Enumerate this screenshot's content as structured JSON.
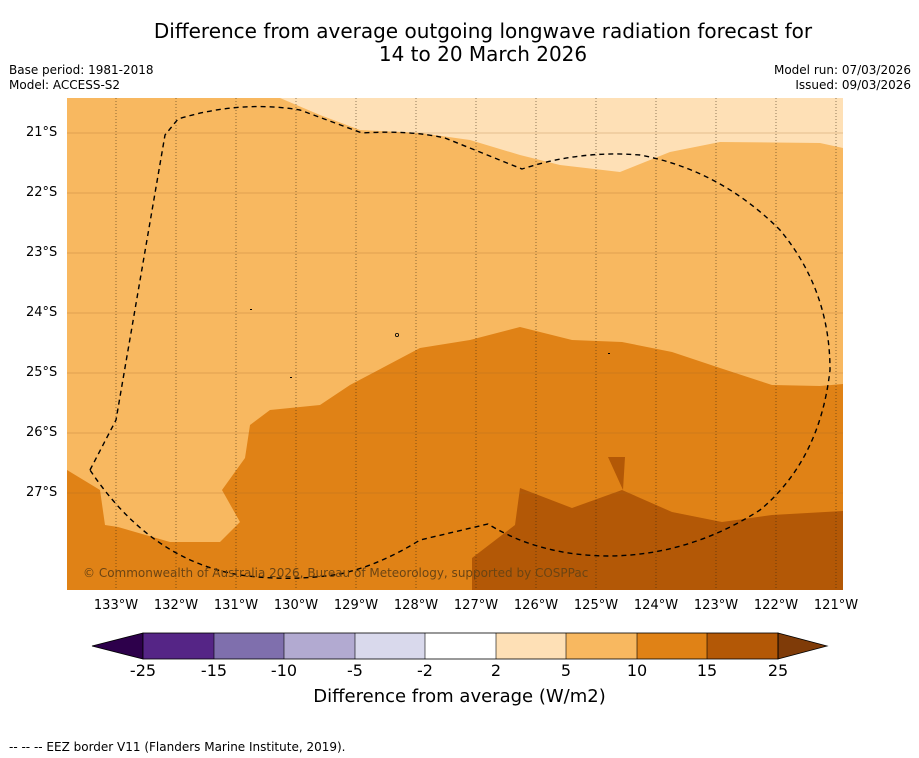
{
  "title_line1": "Difference from average outgoing longwave radiation forecast for",
  "title_line2": "14 to 20 March 2026",
  "base_period": "Base period: 1981-2018",
  "model": "Model: ACCESS-S2",
  "model_run": "Model run: 07/03/2026",
  "issued": "Issued: 09/03/2026",
  "lat_labels": [
    "21°S",
    "22°S",
    "23°S",
    "24°S",
    "25°S",
    "26°S",
    "27°S"
  ],
  "lon_labels": [
    "133°W",
    "132°W",
    "131°W",
    "130°W",
    "129°W",
    "128°W",
    "127°W",
    "126°W",
    "125°W",
    "124°W",
    "123°W",
    "122°W",
    "121°W"
  ],
  "copyright": "© Commonwealth of Australia 2026, Bureau of Meteorology, supported by COSPPac",
  "colorbar": {
    "ticks": [
      "-25",
      "-15",
      "-10",
      "-5",
      "-2",
      "2",
      "5",
      "10",
      "15",
      "25"
    ],
    "colors": [
      "#552586",
      "#7f6fad",
      "#b2aad1",
      "#d9d9ec",
      "#ffffff",
      "#fee0b6",
      "#f8b860",
      "#e08216",
      "#b35806"
    ],
    "low_extend_color": "#2d004b",
    "high_extend_color": "#7f3b08",
    "label": "Difference from average (W/m2)"
  },
  "footer_note": "--  --  -- EEZ border V11 (Flanders Marine Institute, 2019)."
}
